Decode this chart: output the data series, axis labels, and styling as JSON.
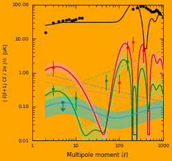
{
  "background_color": "#FFA500",
  "xlim": [
    1,
    1000
  ],
  "ylim": [
    0.01,
    100.0
  ],
  "xlabel": "Multipole moment (ℓ)",
  "ylabel": "( ℓ(ℓ+1) Cℓ / 2π )½  [μK]",
  "tick_fontsize": 5,
  "label_fontsize": 6
}
